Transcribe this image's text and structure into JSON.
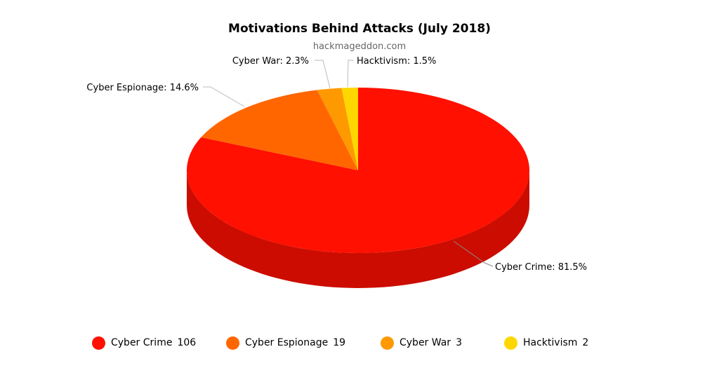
{
  "chart_data": {
    "type": "pie",
    "title": "Motivations Behind Attacks (July 2018)",
    "subtitle": "hackmageddon.com",
    "three_d": true,
    "legend_position": "bottom",
    "slices": [
      {
        "name": "Cyber Crime",
        "value": 106,
        "percent_label": "81.5%",
        "color": "#ff1000",
        "side_color": "#cc0c00"
      },
      {
        "name": "Cyber Espionage",
        "value": 19,
        "percent_label": "14.6%",
        "color": "#ff6600",
        "side_color": "#cc5200"
      },
      {
        "name": "Cyber War",
        "value": 3,
        "percent_label": "2.3%",
        "color": "#ff9900",
        "side_color": "#cc7a00"
      },
      {
        "name": "Hacktivism",
        "value": 2,
        "percent_label": "1.5%",
        "color": "#ffd700",
        "side_color": "#ccac00"
      }
    ]
  },
  "slice_labels": [
    "Cyber Crime: 81.5%",
    "Cyber Espionage: 14.6%",
    "Cyber War: 2.3%",
    "Hacktivism: 1.5%"
  ]
}
